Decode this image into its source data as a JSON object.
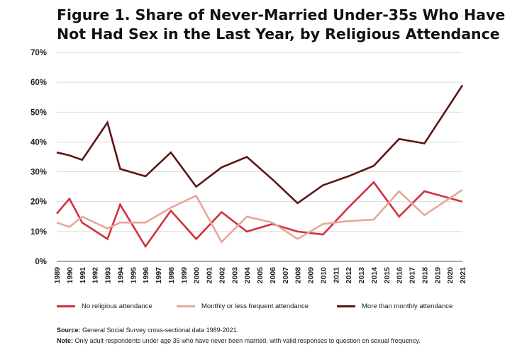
{
  "title": {
    "line1": "Figure 1. Share of Never-Married Under-35s Who Have",
    "line2": "Not Had Sex in the Last Year, by Religious Attendance"
  },
  "chart_data": {
    "type": "line",
    "title": "Figure 1. Share of Never-Married Under-35s Who Have Not Had Sex in the Last Year, by Religious Attendance",
    "x": [
      "1989",
      "1990",
      "1991",
      "1993",
      "1994",
      "1996",
      "1998",
      "2000",
      "2002",
      "2004",
      "2006",
      "2008",
      "2010",
      "2012",
      "2014",
      "2016",
      "2018",
      "2021"
    ],
    "x_ticks": [
      "1989",
      "1990",
      "1991",
      "1992",
      "1993",
      "1994",
      "1995",
      "1996",
      "1997",
      "1998",
      "1999",
      "2000",
      "2001",
      "2002",
      "2003",
      "2004",
      "2005",
      "2006",
      "2007",
      "2008",
      "2009",
      "2010",
      "2011",
      "2012",
      "2013",
      "2014",
      "2015",
      "2016",
      "2017",
      "2018",
      "2019",
      "2020",
      "2021"
    ],
    "y_ticks": [
      "0%",
      "10%",
      "20%",
      "30%",
      "40%",
      "50%",
      "60%",
      "70%"
    ],
    "ylim": [
      0,
      70
    ],
    "grid": "horizontal",
    "legend": "bottom",
    "series": [
      {
        "name": "No religious attendance",
        "color": "#d0313d",
        "values": [
          16,
          21,
          13,
          7.5,
          19,
          5,
          17,
          7.5,
          16.5,
          10,
          12.5,
          10,
          9,
          18,
          26.5,
          15,
          23.5,
          20
        ]
      },
      {
        "name": "Monthly or less frequent attendance",
        "color": "#e8a796",
        "values": [
          13,
          11.5,
          15,
          11,
          13,
          13,
          18,
          22,
          6.5,
          15,
          13,
          7.5,
          12.5,
          13.5,
          14,
          23.5,
          15.5,
          24
        ]
      },
      {
        "name": "More than monthly attendance",
        "color": "#5c1616",
        "values": [
          36.5,
          35.5,
          34,
          46.5,
          31,
          28.5,
          36.5,
          25,
          31.5,
          35,
          27.5,
          19.5,
          25.5,
          28.5,
          32,
          41,
          39.5,
          59
        ]
      }
    ]
  },
  "footnotes": {
    "source_label": "Source:",
    "source_text": "General Social Survey cross-sectional data 1989-2021.",
    "note_label": "Note:",
    "note_text": "Only adult respondents under age 35 who have never been married, with valid responses to question on sexual frequency."
  }
}
